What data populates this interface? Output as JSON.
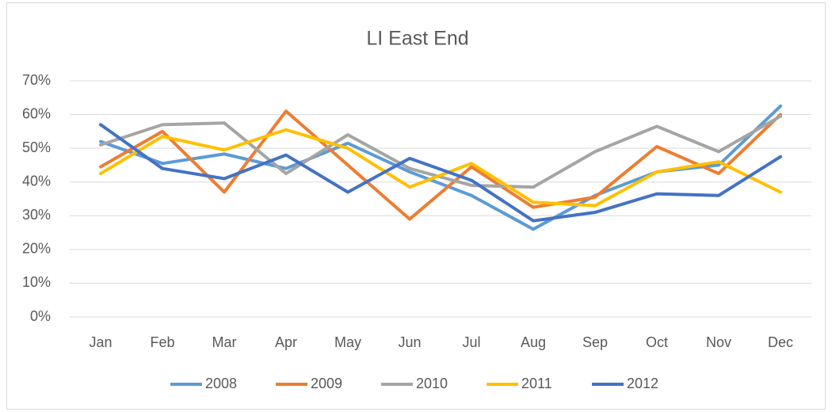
{
  "chart_data": {
    "type": "line",
    "title": "LI East End",
    "categories": [
      "Jan",
      "Feb",
      "Mar",
      "Apr",
      "May",
      "Jun",
      "Jul",
      "Aug",
      "Sep",
      "Oct",
      "Nov",
      "Dec"
    ],
    "series": [
      {
        "name": "2008",
        "color": "#5b9bd5",
        "values": [
          52,
          45.5,
          48.3,
          44,
          51.5,
          43,
          36,
          26,
          36,
          43,
          45,
          62.5
        ]
      },
      {
        "name": "2009",
        "color": "#ed7d31",
        "values": [
          44.5,
          55,
          37,
          61,
          45,
          29,
          44.5,
          32.5,
          35.5,
          50.5,
          42.5,
          60
        ]
      },
      {
        "name": "2010",
        "color": "#a5a5a5",
        "values": [
          51,
          57,
          57.5,
          42.5,
          54,
          44,
          39,
          38.5,
          49,
          56.5,
          49,
          59.5
        ]
      },
      {
        "name": "2011",
        "color": "#ffc000",
        "values": [
          42.5,
          53.5,
          49.5,
          55.5,
          50,
          38.5,
          45.5,
          34,
          33,
          43,
          46,
          37
        ]
      },
      {
        "name": "2012",
        "color": "#4472c4",
        "values": [
          57,
          44,
          41,
          48,
          37,
          47,
          40.5,
          28.5,
          31,
          36.5,
          36,
          47.5
        ]
      }
    ],
    "ylim": [
      0,
      70
    ],
    "yticks": [
      {
        "value": 0,
        "label": "0%"
      },
      {
        "value": 10,
        "label": "10%"
      },
      {
        "value": 20,
        "label": "20%"
      },
      {
        "value": 30,
        "label": "30%"
      },
      {
        "value": 40,
        "label": "40%"
      },
      {
        "value": 50,
        "label": "50%"
      },
      {
        "value": 60,
        "label": "60%"
      },
      {
        "value": 70,
        "label": "70%"
      }
    ],
    "grid": true,
    "legend": "bottom"
  }
}
